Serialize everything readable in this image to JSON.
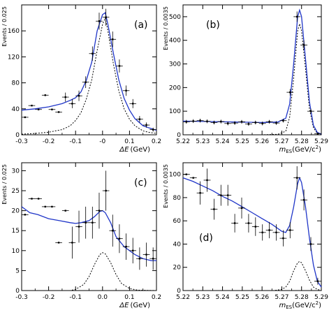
{
  "chart_data": [
    {
      "id": "a",
      "type": "scatter",
      "panel_label": "(a)",
      "ylabel": "Events / 0.025",
      "xlabel_math": "ΔE",
      "xlabel_unit": "(GeV)",
      "xlim": [
        -0.3,
        0.2
      ],
      "ylim": [
        0,
        200
      ],
      "xticks": [
        -0.3,
        -0.2,
        -0.1,
        0,
        0.1,
        0.2
      ],
      "xticklabels": [
        "-0.3",
        "-0.2",
        "-0.1",
        "-0",
        "0.1",
        "0.2"
      ],
      "yticks": [
        0,
        40,
        80,
        120,
        160
      ],
      "yticklabels": [
        "0",
        "40",
        "80",
        "120",
        "160"
      ],
      "points": [
        {
          "x": -0.2875,
          "y": 27,
          "err": 0,
          "xerr": 0.0125
        },
        {
          "x": -0.2625,
          "y": 45,
          "err": 0,
          "xerr": 0.0125
        },
        {
          "x": -0.2375,
          "y": 39,
          "err": 0,
          "xerr": 0.0125
        },
        {
          "x": -0.2125,
          "y": 61,
          "err": 0,
          "xerr": 0.0125
        },
        {
          "x": -0.1875,
          "y": 39,
          "err": 0,
          "xerr": 0.0125
        },
        {
          "x": -0.1625,
          "y": 35,
          "err": 0,
          "xerr": 0.0125
        },
        {
          "x": -0.1375,
          "y": 58,
          "err": 7,
          "xerr": 0.0125
        },
        {
          "x": -0.1125,
          "y": 48,
          "err": 7,
          "xerr": 0.0125
        },
        {
          "x": -0.0875,
          "y": 60,
          "err": 8,
          "xerr": 0.0125
        },
        {
          "x": -0.0625,
          "y": 81,
          "err": 9,
          "xerr": 0.0125
        },
        {
          "x": -0.0375,
          "y": 125,
          "err": 11,
          "xerr": 0.0125
        },
        {
          "x": -0.0125,
          "y": 175,
          "err": 13,
          "xerr": 0.0125
        },
        {
          "x": 0.0125,
          "y": 181,
          "err": 13,
          "xerr": 0.0125
        },
        {
          "x": 0.0375,
          "y": 147,
          "err": 12,
          "xerr": 0.0125
        },
        {
          "x": 0.0625,
          "y": 106,
          "err": 10,
          "xerr": 0.0125
        },
        {
          "x": 0.0875,
          "y": 68,
          "err": 8,
          "xerr": 0.0125
        },
        {
          "x": 0.1125,
          "y": 48,
          "err": 7,
          "xerr": 0.0125
        },
        {
          "x": 0.1375,
          "y": 24,
          "err": 5,
          "xerr": 0.0125
        },
        {
          "x": 0.1625,
          "y": 15,
          "err": 4,
          "xerr": 0.0125
        },
        {
          "x": 0.1875,
          "y": 8,
          "err": 3,
          "xerr": 0.0125
        }
      ],
      "fit_total": [
        [
          -0.3,
          38
        ],
        [
          -0.25,
          40
        ],
        [
          -0.2,
          43
        ],
        [
          -0.15,
          48
        ],
        [
          -0.12,
          53
        ],
        [
          -0.1,
          57
        ],
        [
          -0.08,
          66
        ],
        [
          -0.06,
          84
        ],
        [
          -0.04,
          112
        ],
        [
          -0.02,
          160
        ],
        [
          0,
          185
        ],
        [
          0.01,
          188
        ],
        [
          0.02,
          170
        ],
        [
          0.04,
          126
        ],
        [
          0.06,
          85
        ],
        [
          0.08,
          56
        ],
        [
          0.1,
          38
        ],
        [
          0.12,
          25
        ],
        [
          0.15,
          14
        ],
        [
          0.17,
          11
        ],
        [
          0.2,
          7
        ]
      ],
      "fit_signal": [
        [
          -0.3,
          1
        ],
        [
          -0.25,
          2
        ],
        [
          -0.2,
          4
        ],
        [
          -0.15,
          8
        ],
        [
          -0.12,
          14
        ],
        [
          -0.1,
          22
        ],
        [
          -0.08,
          34
        ],
        [
          -0.06,
          55
        ],
        [
          -0.04,
          85
        ],
        [
          -0.02,
          130
        ],
        [
          0,
          170
        ],
        [
          0.01,
          180
        ],
        [
          0.02,
          160
        ],
        [
          0.04,
          110
        ],
        [
          0.06,
          68
        ],
        [
          0.08,
          40
        ],
        [
          0.1,
          24
        ],
        [
          0.12,
          14
        ],
        [
          0.15,
          6
        ],
        [
          0.17,
          4
        ],
        [
          0.2,
          2
        ]
      ]
    },
    {
      "id": "b",
      "type": "scatter",
      "panel_label": "(b)",
      "ylabel": "Events / 0.0035",
      "xlabel_math": "m",
      "xlabel_sub": "ES",
      "xlabel_unit": "(GeV/c",
      "xlim": [
        5.22,
        5.29
      ],
      "ylim": [
        0,
        550
      ],
      "xticks": [
        5.22,
        5.23,
        5.24,
        5.25,
        5.26,
        5.27,
        5.28,
        5.29
      ],
      "xticklabels": [
        "5.22",
        "5.23",
        "5.24",
        "5.25",
        "5.26",
        "5.27",
        "5.28",
        "5.29"
      ],
      "yticks": [
        0,
        100,
        200,
        300,
        400,
        500
      ],
      "yticklabels": [
        "0",
        "100",
        "200",
        "300",
        "400",
        "500"
      ],
      "points": [
        {
          "x": 5.2217,
          "y": 55,
          "err": 8,
          "xerr": 0.00175
        },
        {
          "x": 5.2252,
          "y": 58,
          "err": 8,
          "xerr": 0.00175
        },
        {
          "x": 5.2287,
          "y": 60,
          "err": 8,
          "xerr": 0.00175
        },
        {
          "x": 5.2322,
          "y": 57,
          "err": 8,
          "xerr": 0.00175
        },
        {
          "x": 5.2357,
          "y": 52,
          "err": 8,
          "xerr": 0.00175
        },
        {
          "x": 5.2392,
          "y": 56,
          "err": 8,
          "xerr": 0.00175
        },
        {
          "x": 5.2427,
          "y": 48,
          "err": 8,
          "xerr": 0.00175
        },
        {
          "x": 5.2462,
          "y": 50,
          "err": 8,
          "xerr": 0.00175
        },
        {
          "x": 5.2497,
          "y": 55,
          "err": 8,
          "xerr": 0.00175
        },
        {
          "x": 5.2532,
          "y": 46,
          "err": 8,
          "xerr": 0.00175
        },
        {
          "x": 5.2567,
          "y": 52,
          "err": 8,
          "xerr": 0.00175
        },
        {
          "x": 5.2602,
          "y": 48,
          "err": 8,
          "xerr": 0.00175
        },
        {
          "x": 5.2637,
          "y": 55,
          "err": 8,
          "xerr": 0.00175
        },
        {
          "x": 5.2672,
          "y": 50,
          "err": 8,
          "xerr": 0.00175
        },
        {
          "x": 5.2707,
          "y": 60,
          "err": 8,
          "xerr": 0.00175
        },
        {
          "x": 5.2742,
          "y": 180,
          "err": 14,
          "xerr": 0.00175
        },
        {
          "x": 5.2777,
          "y": 500,
          "err": 22,
          "xerr": 0.00175
        },
        {
          "x": 5.2812,
          "y": 380,
          "err": 20,
          "xerr": 0.00175
        },
        {
          "x": 5.2847,
          "y": 100,
          "err": 10,
          "xerr": 0.00175
        },
        {
          "x": 5.2882,
          "y": 5,
          "err": 3,
          "xerr": 0.00175
        }
      ],
      "fit_total": [
        [
          5.22,
          58
        ],
        [
          5.24,
          55
        ],
        [
          5.26,
          52
        ],
        [
          5.268,
          54
        ],
        [
          5.272,
          70
        ],
        [
          5.274,
          130
        ],
        [
          5.276,
          300
        ],
        [
          5.278,
          500
        ],
        [
          5.279,
          528
        ],
        [
          5.28,
          500
        ],
        [
          5.282,
          320
        ],
        [
          5.284,
          140
        ],
        [
          5.286,
          40
        ],
        [
          5.288,
          10
        ],
        [
          5.29,
          3
        ]
      ],
      "fit_signal": [
        [
          5.22,
          0
        ],
        [
          5.26,
          0
        ],
        [
          5.268,
          2
        ],
        [
          5.272,
          15
        ],
        [
          5.274,
          75
        ],
        [
          5.276,
          240
        ],
        [
          5.278,
          440
        ],
        [
          5.279,
          470
        ],
        [
          5.28,
          440
        ],
        [
          5.282,
          280
        ],
        [
          5.284,
          110
        ],
        [
          5.286,
          30
        ],
        [
          5.288,
          6
        ],
        [
          5.29,
          1
        ]
      ]
    },
    {
      "id": "c",
      "type": "scatter",
      "panel_label": "(c)",
      "ylabel": "Events / 0.025",
      "xlabel_math": "ΔE",
      "xlabel_unit": "(GeV)",
      "xlim": [
        -0.3,
        0.2
      ],
      "ylim": [
        0,
        32
      ],
      "xticks": [
        -0.3,
        -0.2,
        -0.1,
        0,
        0.1,
        0.2
      ],
      "xticklabels": [
        "-0.3",
        "-0.2",
        "-0.1",
        "0.0",
        "0.1",
        "0.2"
      ],
      "yticks": [
        0,
        5,
        10,
        15,
        20,
        25,
        30
      ],
      "yticklabels": [
        "0",
        "5",
        "10",
        "15",
        "20",
        "25",
        "30"
      ],
      "points": [
        {
          "x": -0.2875,
          "y": 19,
          "err": 0,
          "xerr": 0.0125
        },
        {
          "x": -0.2625,
          "y": 23,
          "err": 0,
          "xerr": 0.0125
        },
        {
          "x": -0.2375,
          "y": 23,
          "err": 0,
          "xerr": 0.0125
        },
        {
          "x": -0.2125,
          "y": 21,
          "err": 0,
          "xerr": 0.0125
        },
        {
          "x": -0.1875,
          "y": 21,
          "err": 0,
          "xerr": 0.0125
        },
        {
          "x": -0.1625,
          "y": 12,
          "err": 0,
          "xerr": 0.0125
        },
        {
          "x": -0.1375,
          "y": 20,
          "err": 0,
          "xerr": 0.0125
        },
        {
          "x": -0.1125,
          "y": 12,
          "err": 4,
          "xerr": 0.0125
        },
        {
          "x": -0.0875,
          "y": 16,
          "err": 4,
          "xerr": 0.0125
        },
        {
          "x": -0.0625,
          "y": 17,
          "err": 4,
          "xerr": 0.0125
        },
        {
          "x": -0.0375,
          "y": 17,
          "err": 4,
          "xerr": 0.0125
        },
        {
          "x": -0.0125,
          "y": 20,
          "err": 4.5,
          "xerr": 0.0125
        },
        {
          "x": 0.0125,
          "y": 25,
          "err": 5,
          "xerr": 0.0125
        },
        {
          "x": 0.0375,
          "y": 15,
          "err": 4,
          "xerr": 0.0125
        },
        {
          "x": 0.0625,
          "y": 13,
          "err": 3.6,
          "xerr": 0.0125
        },
        {
          "x": 0.0875,
          "y": 11,
          "err": 3.3,
          "xerr": 0.0125
        },
        {
          "x": 0.1125,
          "y": 10,
          "err": 3.2,
          "xerr": 0.0125
        },
        {
          "x": 0.1375,
          "y": 8,
          "err": 2.8,
          "xerr": 0.0125
        },
        {
          "x": 0.1625,
          "y": 9,
          "err": 3,
          "xerr": 0.0125
        },
        {
          "x": 0.1875,
          "y": 8,
          "err": 2.8,
          "xerr": 0.0125
        }
      ],
      "fit_total": [
        [
          -0.3,
          21
        ],
        [
          -0.27,
          19.5
        ],
        [
          -0.24,
          19
        ],
        [
          -0.2,
          18
        ],
        [
          -0.16,
          17.5
        ],
        [
          -0.12,
          17
        ],
        [
          -0.1,
          16.8
        ],
        [
          -0.08,
          17
        ],
        [
          -0.05,
          17.5
        ],
        [
          -0.03,
          18.5
        ],
        [
          -0.01,
          19.8
        ],
        [
          0,
          20
        ],
        [
          0.01,
          19.5
        ],
        [
          0.03,
          17
        ],
        [
          0.05,
          13.5
        ],
        [
          0.08,
          11
        ],
        [
          0.1,
          10
        ],
        [
          0.12,
          9
        ],
        [
          0.15,
          8
        ],
        [
          0.18,
          7.5
        ],
        [
          0.2,
          7.5
        ]
      ],
      "fit_signal": [
        [
          -0.3,
          0
        ],
        [
          -0.12,
          0
        ],
        [
          -0.1,
          0.3
        ],
        [
          -0.07,
          1.5
        ],
        [
          -0.05,
          3.5
        ],
        [
          -0.03,
          6.5
        ],
        [
          -0.01,
          9
        ],
        [
          0,
          9.5
        ],
        [
          0.01,
          9.2
        ],
        [
          0.03,
          7
        ],
        [
          0.05,
          4
        ],
        [
          0.07,
          1.8
        ],
        [
          0.1,
          0.5
        ],
        [
          0.13,
          0.1
        ],
        [
          0.2,
          0
        ]
      ]
    },
    {
      "id": "d",
      "type": "scatter",
      "panel_label": "(d)",
      "ylabel": "Events / 0.0035",
      "xlabel_math": "m",
      "xlabel_sub": "ES",
      "xlabel_unit": "(GeV/c",
      "xlim": [
        5.22,
        5.29
      ],
      "ylim": [
        0,
        110
      ],
      "xticks": [
        5.22,
        5.23,
        5.24,
        5.25,
        5.26,
        5.27,
        5.28,
        5.29
      ],
      "xticklabels": [
        "5.22",
        "5.23",
        "5.24",
        "5.25",
        "5.26",
        "5.27",
        "5.28",
        "5.29"
      ],
      "yticks": [
        0,
        20,
        40,
        60,
        80,
        100
      ],
      "yticklabels": [
        "0",
        "20",
        "40",
        "60",
        "80",
        "100"
      ],
      "points": [
        {
          "x": 5.2217,
          "y": 100,
          "err": 0,
          "xerr": 0.00175
        },
        {
          "x": 5.2252,
          "y": 97,
          "err": 0,
          "xerr": 0.00175
        },
        {
          "x": 5.2287,
          "y": 84,
          "err": 10,
          "xerr": 0.00175
        },
        {
          "x": 5.2322,
          "y": 95,
          "err": 10,
          "xerr": 0.00175
        },
        {
          "x": 5.2357,
          "y": 70,
          "err": 9,
          "xerr": 0.00175
        },
        {
          "x": 5.2392,
          "y": 82,
          "err": 9,
          "xerr": 0.00175
        },
        {
          "x": 5.2427,
          "y": 82,
          "err": 9,
          "xerr": 0.00175
        },
        {
          "x": 5.2462,
          "y": 58,
          "err": 8,
          "xerr": 0.00175
        },
        {
          "x": 5.2497,
          "y": 71,
          "err": 9,
          "xerr": 0.00175
        },
        {
          "x": 5.2532,
          "y": 58,
          "err": 8,
          "xerr": 0.00175
        },
        {
          "x": 5.2567,
          "y": 55,
          "err": 8,
          "xerr": 0.00175
        },
        {
          "x": 5.2602,
          "y": 50,
          "err": 7,
          "xerr": 0.00175
        },
        {
          "x": 5.2637,
          "y": 52,
          "err": 7,
          "xerr": 0.00175
        },
        {
          "x": 5.2672,
          "y": 50,
          "err": 7,
          "xerr": 0.00175
        },
        {
          "x": 5.2707,
          "y": 45,
          "err": 7,
          "xerr": 0.00175
        },
        {
          "x": 5.2742,
          "y": 52,
          "err": 7,
          "xerr": 0.00175
        },
        {
          "x": 5.2777,
          "y": 97,
          "err": 10,
          "xerr": 0.00175
        },
        {
          "x": 5.2812,
          "y": 78,
          "err": 9,
          "xerr": 0.00175
        },
        {
          "x": 5.2847,
          "y": 40,
          "err": 6,
          "xerr": 0.00175
        },
        {
          "x": 5.2882,
          "y": 8,
          "err": 3,
          "xerr": 0.00175
        }
      ],
      "fit_total": [
        [
          5.22,
          97
        ],
        [
          5.225,
          94
        ],
        [
          5.23,
          90
        ],
        [
          5.235,
          86
        ],
        [
          5.24,
          81
        ],
        [
          5.245,
          77
        ],
        [
          5.25,
          72
        ],
        [
          5.255,
          67
        ],
        [
          5.26,
          62
        ],
        [
          5.265,
          57
        ],
        [
          5.27,
          51
        ],
        [
          5.272,
          50
        ],
        [
          5.274,
          56
        ],
        [
          5.276,
          72
        ],
        [
          5.278,
          92
        ],
        [
          5.279,
          97
        ],
        [
          5.28,
          93
        ],
        [
          5.282,
          72
        ],
        [
          5.284,
          45
        ],
        [
          5.286,
          22
        ],
        [
          5.288,
          8
        ],
        [
          5.29,
          3
        ]
      ],
      "fit_signal": [
        [
          5.22,
          0
        ],
        [
          5.266,
          0
        ],
        [
          5.27,
          1
        ],
        [
          5.272,
          3
        ],
        [
          5.274,
          8
        ],
        [
          5.276,
          17
        ],
        [
          5.278,
          24
        ],
        [
          5.279,
          25
        ],
        [
          5.28,
          24
        ],
        [
          5.282,
          17
        ],
        [
          5.284,
          9
        ],
        [
          5.286,
          3
        ],
        [
          5.288,
          1
        ],
        [
          5.29,
          0
        ]
      ]
    }
  ]
}
